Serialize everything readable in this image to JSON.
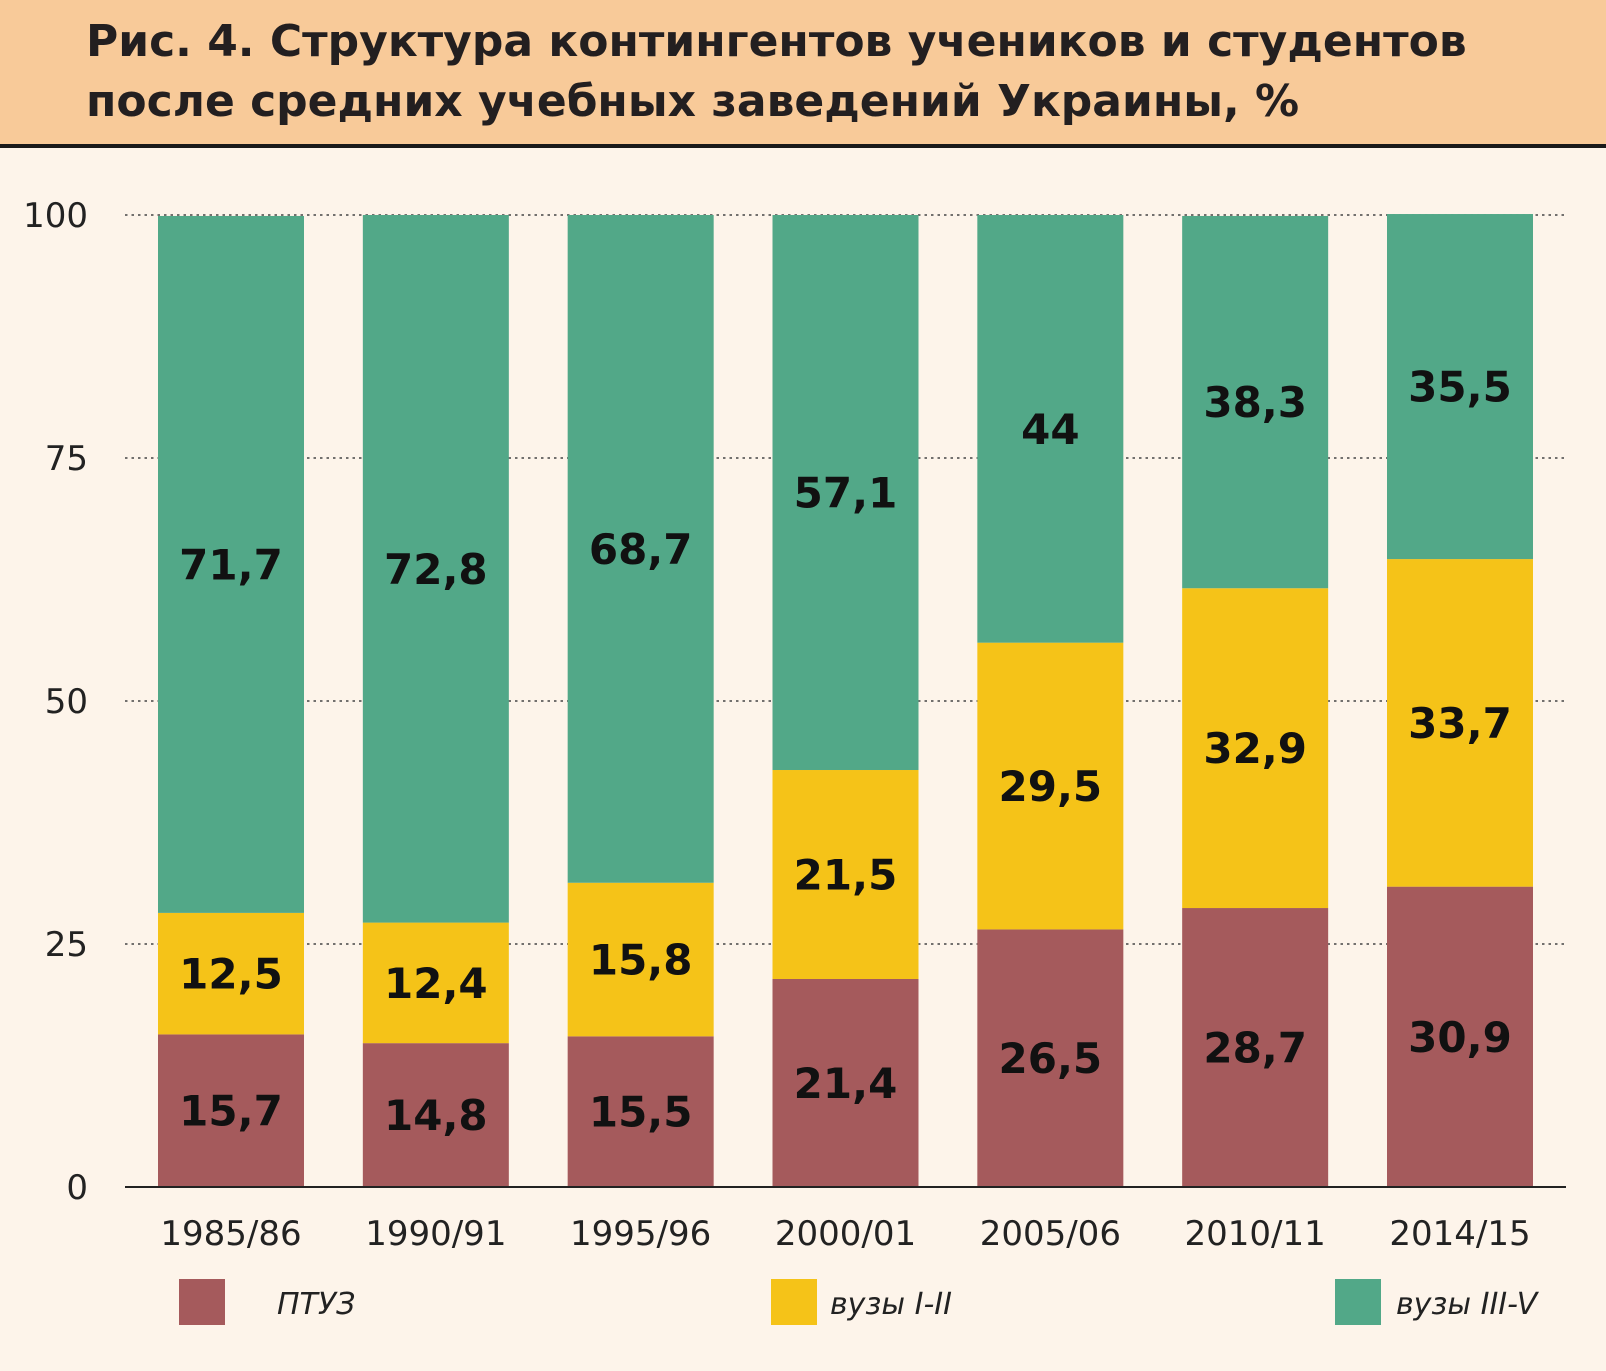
{
  "header": {
    "title": "Рис. 4. Структура контингентов учеников и студентов после средних учебных заведений Украины, %"
  },
  "chart_data": {
    "type": "bar",
    "stacked": true,
    "title": "Рис. 4. Структура контингентов учеников и студентов после средних учебных заведений Украины, %",
    "categories": [
      "1985/86",
      "1990/91",
      "1995/96",
      "2000/01",
      "2005/06",
      "2010/11",
      "2014/15"
    ],
    "series": [
      {
        "name": "ПТУЗ",
        "color": "#a55a5c",
        "values": [
          15.7,
          14.8,
          15.5,
          21.4,
          26.5,
          28.7,
          30.9
        ],
        "labels": [
          "15,7",
          "14,8",
          "15,5",
          "21,4",
          "26,5",
          "28,7",
          "30,9"
        ]
      },
      {
        "name": "вузы I-II",
        "color": "#f5c318",
        "values": [
          12.5,
          12.4,
          15.8,
          21.5,
          29.5,
          32.9,
          33.7
        ],
        "labels": [
          "12,5",
          "12,4",
          "15,8",
          "21,5",
          "29,5",
          "32,9",
          "33,7"
        ]
      },
      {
        "name": "вузы III-V",
        "color": "#52a888",
        "values": [
          71.7,
          72.8,
          68.7,
          57.1,
          44,
          38.3,
          35.5
        ],
        "labels": [
          "71,7",
          "72,8",
          "68,7",
          "57,1",
          "44",
          "38,3",
          "35,5"
        ]
      }
    ],
    "yticks": [
      0,
      25,
      50,
      75,
      100
    ],
    "ylim": [
      0,
      100
    ],
    "grid": "dotted horizontal",
    "legend": "bottom"
  }
}
